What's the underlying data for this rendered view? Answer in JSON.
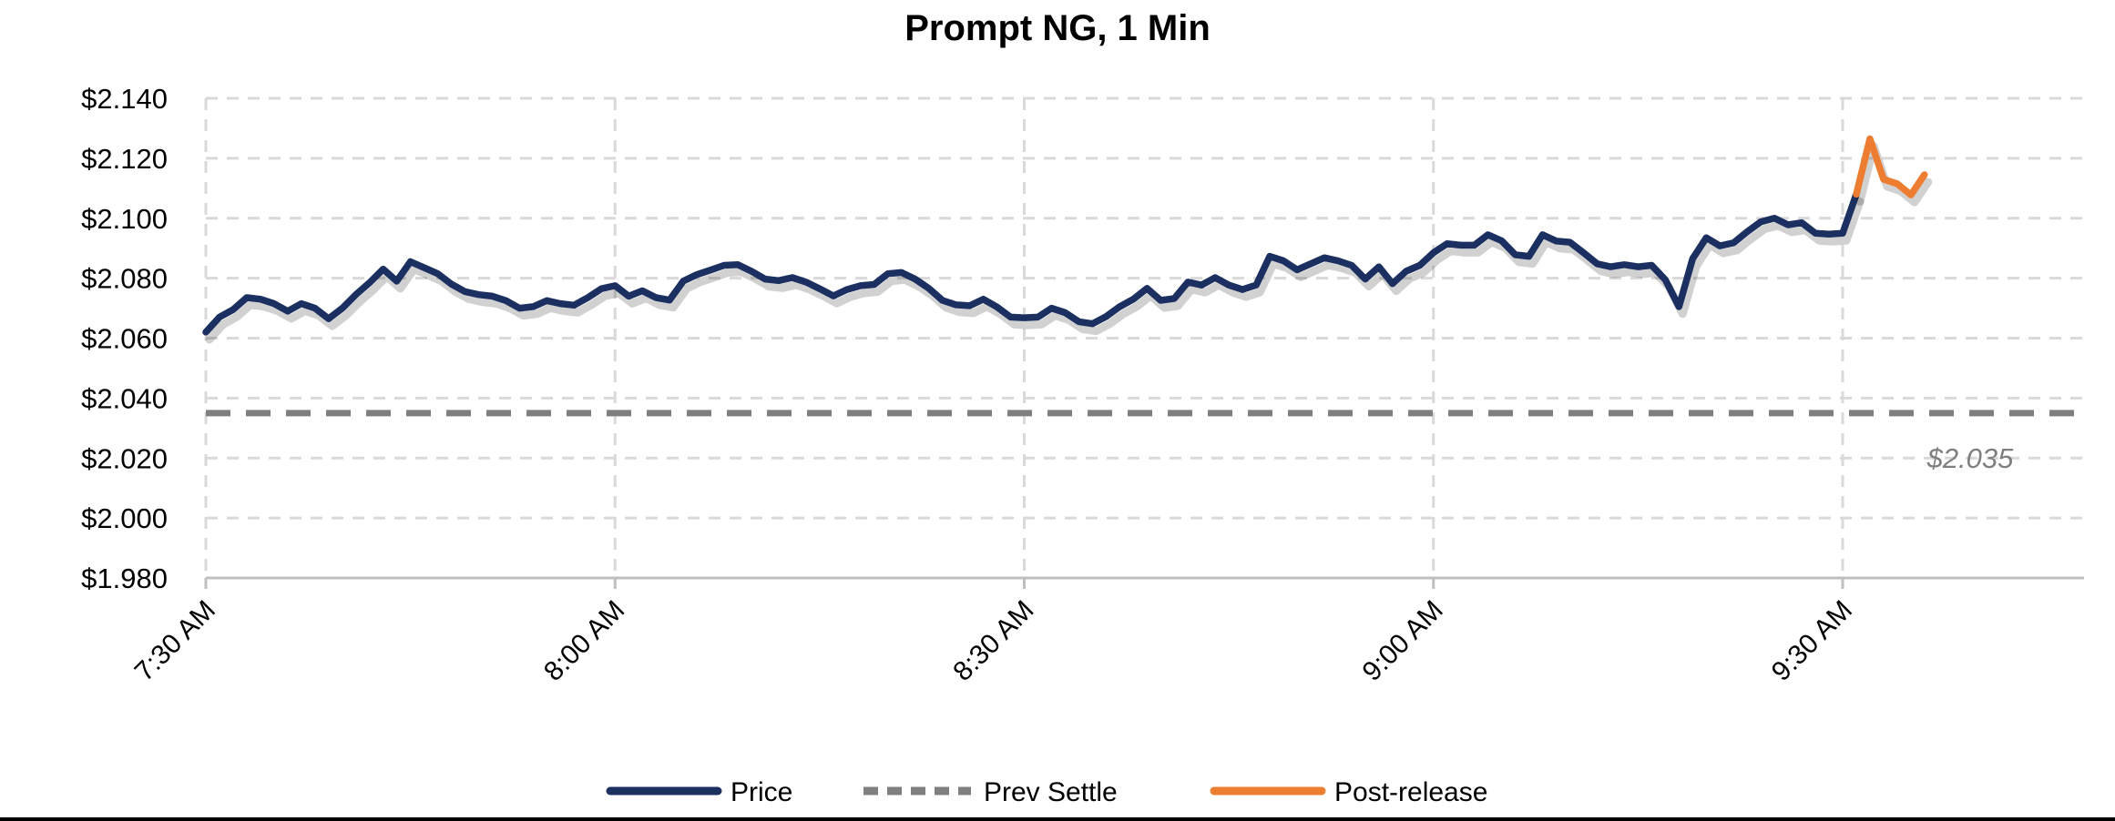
{
  "chart_data": {
    "type": "line",
    "title": "Prompt NG, 1 Min",
    "y_axis": {
      "tick_format": "$#.###",
      "ticks": [
        {
          "label": "$2.140",
          "value": 2.14
        },
        {
          "label": "$2.120",
          "value": 2.12
        },
        {
          "label": "$2.100",
          "value": 2.1
        },
        {
          "label": "$2.080",
          "value": 2.08
        },
        {
          "label": "$2.060",
          "value": 2.06
        },
        {
          "label": "$2.040",
          "value": 2.04
        },
        {
          "label": "$2.020",
          "value": 2.02
        },
        {
          "label": "$2.000",
          "value": 2.0
        },
        {
          "label": "$1.980",
          "value": 1.98
        }
      ],
      "min": 1.98,
      "max": 2.14
    },
    "x_axis": {
      "start_time": "7:30 AM",
      "ticks": [
        {
          "label": "7:30 AM",
          "minute": 0
        },
        {
          "label": "8:00 AM",
          "minute": 30
        },
        {
          "label": "8:30 AM",
          "minute": 60
        },
        {
          "label": "9:00 AM",
          "minute": 90
        },
        {
          "label": "9:30 AM",
          "minute": 120
        }
      ],
      "label_rotation_deg": -45
    },
    "grid": {
      "horizontal": "dashed",
      "vertical": "dashed",
      "color": "#D9D9D9"
    },
    "series": [
      {
        "name": "Price",
        "type": "line",
        "color": "#1B3060",
        "style": "solid",
        "start_minute": 0,
        "interval_minutes": 1,
        "values": [
          2.062,
          2.067,
          2.0695,
          2.0735,
          2.073,
          2.0715,
          2.069,
          2.0715,
          2.07,
          2.0665,
          2.07,
          2.0745,
          2.0785,
          2.083,
          2.079,
          2.0855,
          2.0835,
          2.0815,
          2.078,
          2.0755,
          2.0745,
          2.074,
          2.0725,
          2.07,
          2.0705,
          2.0725,
          2.0715,
          2.071,
          2.0735,
          2.0765,
          2.0775,
          2.074,
          2.0758,
          2.0735,
          2.0727,
          2.079,
          2.0812,
          2.0827,
          2.0843,
          2.0845,
          2.0823,
          2.0797,
          2.0792,
          2.0802,
          2.0787,
          2.0765,
          2.0741,
          2.0762,
          2.0775,
          2.0779,
          2.0815,
          2.0819,
          2.0797,
          2.0766,
          2.0726,
          2.0711,
          2.0708,
          2.073,
          2.0704,
          2.067,
          2.0668,
          2.067,
          2.07,
          2.0685,
          2.0655,
          2.0648,
          2.0672,
          2.0705,
          2.073,
          2.0766,
          2.0726,
          2.0732,
          2.0787,
          2.0777,
          2.0802,
          2.0777,
          2.0762,
          2.0777,
          2.0873,
          2.0858,
          2.0828,
          2.0848,
          2.0868,
          2.0858,
          2.0843,
          2.0797,
          2.0838,
          2.0782,
          2.0823,
          2.0843,
          2.0885,
          2.0915,
          2.091,
          2.091,
          2.0945,
          2.0925,
          2.0878,
          2.0873,
          2.0945,
          2.0924,
          2.092,
          2.0885,
          2.0848,
          2.0838,
          2.0845,
          2.0838,
          2.0843,
          2.0795,
          2.0705,
          2.0865,
          2.0935,
          2.0908,
          2.0918,
          2.0955,
          2.0988,
          2.1,
          2.0978,
          2.0985,
          2.095,
          2.0947,
          2.095,
          2.108
        ]
      },
      {
        "name": "Prev Settle",
        "type": "hline",
        "color": "#7F7F7F",
        "style": "dashed",
        "value": 2.035
      },
      {
        "name": "Post-release",
        "type": "line",
        "color": "#ED7D31",
        "style": "solid",
        "start_minute": 121,
        "interval_minutes": 1,
        "values": [
          2.108,
          2.1265,
          2.113,
          2.1115,
          2.1078,
          2.1145
        ]
      }
    ],
    "annotation": {
      "text": "$2.035",
      "color": "#7F7F7F",
      "italic": true
    },
    "legend": {
      "position": "bottom",
      "items": [
        {
          "label": "Price",
          "color": "#1B3060",
          "dash": false
        },
        {
          "label": "Prev Settle",
          "color": "#7F7F7F",
          "dash": true
        },
        {
          "label": "Post-release",
          "color": "#ED7D31",
          "dash": false
        }
      ]
    }
  },
  "colors": {
    "price": "#1B3060",
    "prev_settle": "#7F7F7F",
    "post_release": "#ED7D31",
    "gridline": "#D9D9D9",
    "axis_line": "#BFBFBF",
    "annotation": "#7F7F7F",
    "background": "#FFFFFF",
    "bottom_border": "#000000"
  }
}
